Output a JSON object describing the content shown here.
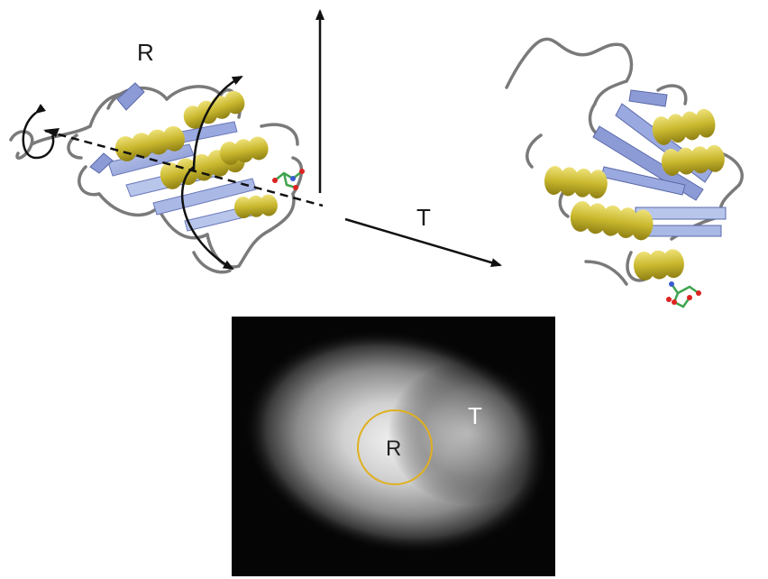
{
  "labels": {
    "rotation": "R",
    "translation": "T",
    "map_rotation": "R",
    "map_translation": "T"
  },
  "colors": {
    "helix": "#c9b82e",
    "helix_light": "#e6d95a",
    "strand": "#8c9bd6",
    "strand_light": "#b8c6ec",
    "loop": "#7a7a7a",
    "arrow": "#111111",
    "map_background": "#050505",
    "map_circle": "#e0b020"
  },
  "icons": {
    "left_protein": "protein-ribbon-icon",
    "right_protein": "protein-ribbon-icon",
    "ligand": "ligand-ball-stick-icon"
  }
}
